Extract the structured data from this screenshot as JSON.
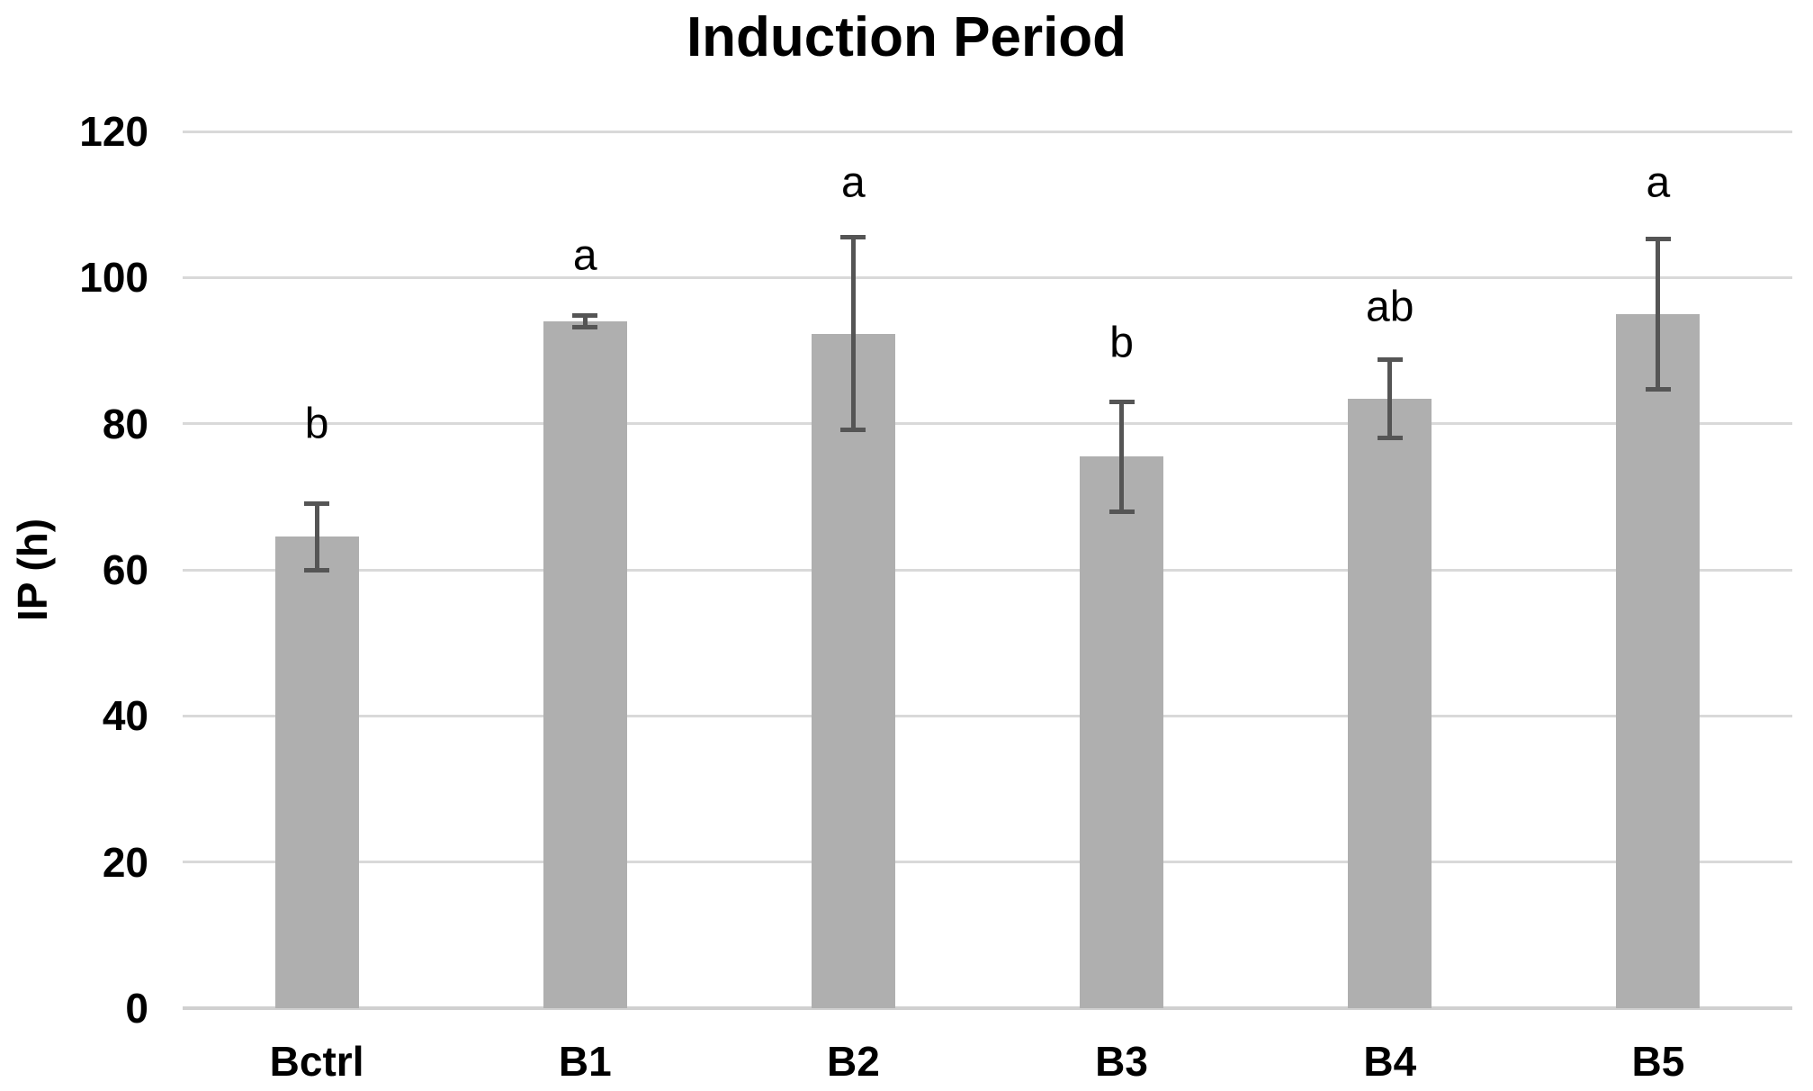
{
  "chart_data": {
    "type": "bar",
    "title": "Induction Period",
    "xlabel": "",
    "ylabel": "IP (h)",
    "categories": [
      "Bctrl",
      "B1",
      "B2",
      "B3",
      "B4",
      "B5"
    ],
    "values": [
      64.5,
      94.0,
      92.3,
      75.5,
      83.4,
      95.0
    ],
    "error_bars": [
      4.6,
      0.8,
      13.2,
      7.5,
      5.4,
      10.3
    ],
    "significance_letters": [
      "b",
      "a",
      "a",
      "b",
      "ab",
      "a"
    ],
    "letter_y_positions": [
      80,
      103,
      113,
      91,
      96,
      113
    ],
    "ylim": [
      0,
      120
    ],
    "yticks": [
      0,
      20,
      40,
      60,
      80,
      100,
      120
    ],
    "grid": true,
    "legend": false,
    "colors": {
      "bar_fill": "#AFAFAF",
      "error_bar": "#555555",
      "gridline": "#D9D9D9",
      "axis_line": "#D0D0D0",
      "text": "#000000",
      "background": "#FFFFFF"
    }
  }
}
